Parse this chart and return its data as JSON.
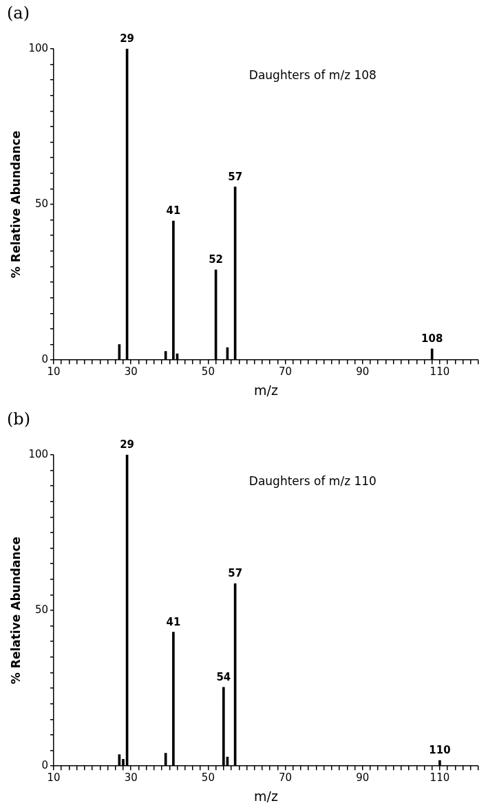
{
  "chart_data": [
    {
      "type": "bar",
      "title": "(a)",
      "xlabel": "m/z",
      "ylabel": "% Relative Abundance",
      "annotations": [
        "Daughters of m/z 108",
        {
          "text": "29",
          "x": 29,
          "y": 100
        },
        {
          "text": "41",
          "x": 41,
          "y": 44.7
        },
        {
          "text": "52",
          "x": 52,
          "y": 29
        },
        {
          "text": "57",
          "x": 57,
          "y": 55.6
        },
        {
          "text": "108",
          "x": 108,
          "y": 3.6
        }
      ],
      "x": [
        27,
        29,
        39,
        41,
        42,
        52,
        55,
        57,
        108
      ],
      "values": [
        5,
        100,
        2.8,
        44.7,
        2,
        29,
        4,
        55.6,
        3.6
      ],
      "color": "#000000",
      "grid": false,
      "legend": false,
      "xlim": [
        10,
        120
      ],
      "xticks": [
        10,
        {
          "value": 12,
          "label": null
        },
        {
          "value": 14,
          "label": null
        },
        {
          "value": 16,
          "label": null
        },
        {
          "value": 18,
          "label": null
        },
        {
          "value": 20,
          "label": null
        },
        {
          "value": 22,
          "label": null
        },
        {
          "value": 24,
          "label": null
        },
        {
          "value": 26,
          "label": null
        },
        {
          "value": 28,
          "label": null
        },
        30,
        {
          "value": 32,
          "label": null
        },
        {
          "value": 34,
          "label": null
        },
        {
          "value": 36,
          "label": null
        },
        {
          "value": 38,
          "label": null
        },
        {
          "value": 40,
          "label": null
        },
        {
          "value": 42,
          "label": null
        },
        {
          "value": 44,
          "label": null
        },
        {
          "value": 46,
          "label": null
        },
        {
          "value": 48,
          "label": null
        },
        50,
        {
          "value": 52,
          "label": null
        },
        {
          "value": 54,
          "label": null
        },
        {
          "value": 56,
          "label": null
        },
        {
          "value": 58,
          "label": null
        },
        {
          "value": 60,
          "label": null
        },
        {
          "value": 62,
          "label": null
        },
        {
          "value": 64,
          "label": null
        },
        {
          "value": 66,
          "label": null
        },
        {
          "value": 68,
          "label": null
        },
        70,
        {
          "value": 72,
          "label": null
        },
        {
          "value": 74,
          "label": null
        },
        {
          "value": 76,
          "label": null
        },
        {
          "value": 78,
          "label": null
        },
        {
          "value": 80,
          "label": null
        },
        {
          "value": 82,
          "label": null
        },
        {
          "value": 84,
          "label": null
        },
        {
          "value": 86,
          "label": null
        },
        {
          "value": 88,
          "label": null
        },
        90,
        {
          "value": 92,
          "label": null
        },
        {
          "value": 94,
          "label": null
        },
        {
          "value": 96,
          "label": null
        },
        {
          "value": 98,
          "label": null
        },
        {
          "value": 100,
          "label": null
        },
        {
          "value": 102,
          "label": null
        },
        {
          "value": 104,
          "label": null
        },
        {
          "value": 106,
          "label": null
        },
        {
          "value": 108,
          "label": null
        },
        110,
        {
          "value": 112,
          "label": null
        },
        {
          "value": 114,
          "label": null
        },
        {
          "value": 116,
          "label": null
        },
        {
          "value": 118,
          "label": null
        },
        {
          "value": 120,
          "label": null
        }
      ],
      "ylim": [
        0,
        100
      ],
      "yticks": [
        0,
        {
          "value": 5,
          "label": null
        },
        {
          "value": 10,
          "label": null
        },
        {
          "value": 15,
          "label": null
        },
        {
          "value": 20,
          "label": null
        },
        {
          "value": 25,
          "label": null
        },
        {
          "value": 30,
          "label": null
        },
        {
          "value": 35,
          "label": null
        },
        {
          "value": 40,
          "label": null
        },
        {
          "value": 45,
          "label": null
        },
        50,
        {
          "value": 55,
          "label": null
        },
        {
          "value": 60,
          "label": null
        },
        {
          "value": 65,
          "label": null
        },
        {
          "value": 70,
          "label": null
        },
        {
          "value": 75,
          "label": null
        },
        {
          "value": 80,
          "label": null
        },
        {
          "value": 85,
          "label": null
        },
        {
          "value": 90,
          "label": null
        },
        {
          "value": 95,
          "label": null
        },
        100
      ]
    },
    {
      "type": "bar",
      "title": "(b)",
      "xlabel": "m/z",
      "ylabel": "% Relative Abundance",
      "annotations": [
        "Daughters of m/z 110",
        {
          "text": "29",
          "x": 29,
          "y": 100
        },
        {
          "text": "41",
          "x": 41,
          "y": 43
        },
        {
          "text": "54",
          "x": 54,
          "y": 25.3
        },
        {
          "text": "57",
          "x": 57,
          "y": 58.6
        },
        {
          "text": "110",
          "x": 110,
          "y": 1.8
        }
      ],
      "x": [
        27,
        28,
        29,
        39,
        41,
        54,
        55,
        57,
        110
      ],
      "values": [
        3.7,
        2.2,
        100,
        4.1,
        43,
        25.3,
        2.9,
        58.6,
        1.8
      ],
      "color": "#000000",
      "grid": false,
      "legend": false,
      "xlim": [
        10,
        120
      ],
      "xticks": [
        10,
        {
          "value": 12,
          "label": null
        },
        {
          "value": 14,
          "label": null
        },
        {
          "value": 16,
          "label": null
        },
        {
          "value": 18,
          "label": null
        },
        {
          "value": 20,
          "label": null
        },
        {
          "value": 22,
          "label": null
        },
        {
          "value": 24,
          "label": null
        },
        {
          "value": 26,
          "label": null
        },
        {
          "value": 28,
          "label": null
        },
        30,
        {
          "value": 32,
          "label": null
        },
        {
          "value": 34,
          "label": null
        },
        {
          "value": 36,
          "label": null
        },
        {
          "value": 38,
          "label": null
        },
        {
          "value": 40,
          "label": null
        },
        {
          "value": 42,
          "label": null
        },
        {
          "value": 44,
          "label": null
        },
        {
          "value": 46,
          "label": null
        },
        {
          "value": 48,
          "label": null
        },
        50,
        {
          "value": 52,
          "label": null
        },
        {
          "value": 54,
          "label": null
        },
        {
          "value": 56,
          "label": null
        },
        {
          "value": 58,
          "label": null
        },
        {
          "value": 60,
          "label": null
        },
        {
          "value": 62,
          "label": null
        },
        {
          "value": 64,
          "label": null
        },
        {
          "value": 66,
          "label": null
        },
        {
          "value": 68,
          "label": null
        },
        70,
        {
          "value": 72,
          "label": null
        },
        {
          "value": 74,
          "label": null
        },
        {
          "value": 76,
          "label": null
        },
        {
          "value": 78,
          "label": null
        },
        {
          "value": 80,
          "label": null
        },
        {
          "value": 82,
          "label": null
        },
        {
          "value": 84,
          "label": null
        },
        {
          "value": 86,
          "label": null
        },
        {
          "value": 88,
          "label": null
        },
        90,
        {
          "value": 92,
          "label": null
        },
        {
          "value": 94,
          "label": null
        },
        {
          "value": 96,
          "label": null
        },
        {
          "value": 98,
          "label": null
        },
        {
          "value": 100,
          "label": null
        },
        {
          "value": 102,
          "label": null
        },
        {
          "value": 104,
          "label": null
        },
        {
          "value": 106,
          "label": null
        },
        {
          "value": 108,
          "label": null
        },
        110,
        {
          "value": 112,
          "label": null
        },
        {
          "value": 114,
          "label": null
        },
        {
          "value": 116,
          "label": null
        },
        {
          "value": 118,
          "label": null
        },
        {
          "value": 120,
          "label": null
        }
      ],
      "ylim": [
        0,
        100
      ],
      "yticks": [
        0,
        {
          "value": 5,
          "label": null
        },
        {
          "value": 10,
          "label": null
        },
        {
          "value": 15,
          "label": null
        },
        {
          "value": 20,
          "label": null
        },
        {
          "value": 25,
          "label": null
        },
        {
          "value": 30,
          "label": null
        },
        {
          "value": 35,
          "label": null
        },
        {
          "value": 40,
          "label": null
        },
        {
          "value": 45,
          "label": null
        },
        50,
        {
          "value": 55,
          "label": null
        },
        {
          "value": 60,
          "label": null
        },
        {
          "value": 65,
          "label": null
        },
        {
          "value": 70,
          "label": null
        },
        {
          "value": 75,
          "label": null
        },
        {
          "value": 80,
          "label": null
        },
        {
          "value": 85,
          "label": null
        },
        {
          "value": 90,
          "label": null
        },
        {
          "value": 95,
          "label": null
        },
        100
      ]
    }
  ]
}
